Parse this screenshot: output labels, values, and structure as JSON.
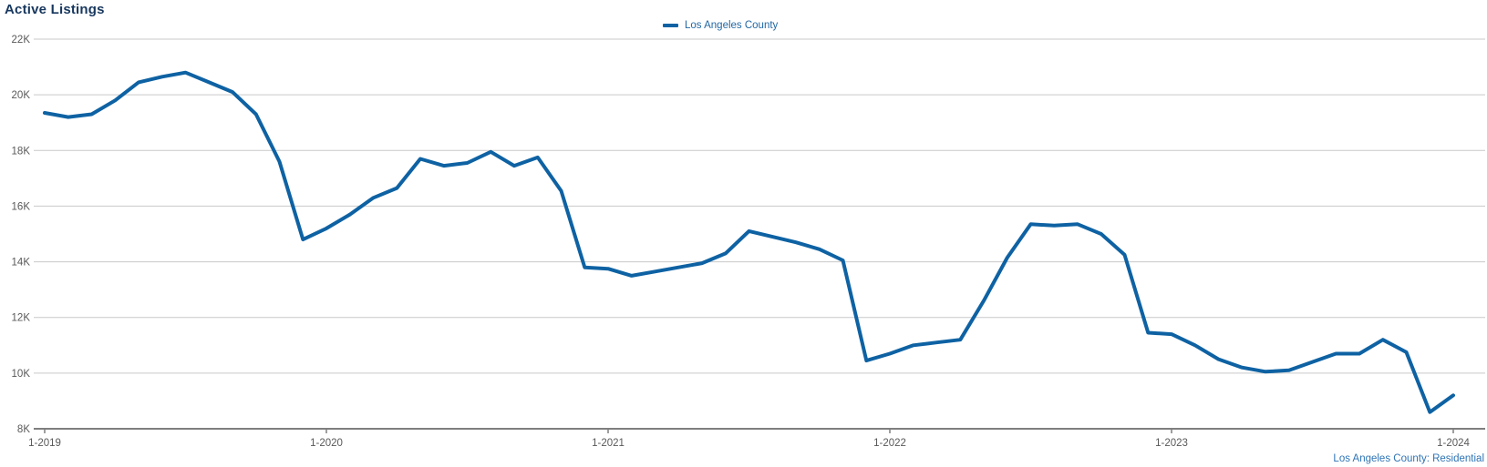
{
  "page": {
    "title": "Active Listings",
    "footer": "Los Angeles County: Residential"
  },
  "legend": {
    "items": [
      {
        "label": "Los Angeles County",
        "color": "#0e62a3"
      }
    ]
  },
  "colors": {
    "line": "#0e62a3",
    "title_text": "#17375e",
    "legend_text": "#2368a4",
    "footer_text": "#2e74b5",
    "axis_text": "#595959",
    "gridline": "#c9c9c9",
    "axis_line": "#7f7f7f"
  },
  "chart_data": {
    "type": "line",
    "title": "Active Listings",
    "subtitle": "",
    "xlabel": "",
    "ylabel": "",
    "legend_position": "top-center",
    "grid": "horizontal",
    "y_unit": "K",
    "ylim_k": [
      8,
      22
    ],
    "y_tick_step_k": 2,
    "y_tick_labels": [
      "8K",
      "10K",
      "12K",
      "14K",
      "16K",
      "18K",
      "20K",
      "22K"
    ],
    "x_tick_labels": [
      "1-2019",
      "1-2020",
      "1-2021",
      "1-2022",
      "1-2023",
      "1-2024"
    ],
    "x_tick_month_indices": [
      0,
      12,
      24,
      36,
      48,
      60
    ],
    "x": [
      "1-2019",
      "2-2019",
      "3-2019",
      "4-2019",
      "5-2019",
      "6-2019",
      "7-2019",
      "8-2019",
      "9-2019",
      "10-2019",
      "11-2019",
      "12-2019",
      "1-2020",
      "2-2020",
      "3-2020",
      "4-2020",
      "5-2020",
      "6-2020",
      "7-2020",
      "8-2020",
      "9-2020",
      "10-2020",
      "11-2020",
      "12-2020",
      "1-2021",
      "2-2021",
      "3-2021",
      "4-2021",
      "5-2021",
      "6-2021",
      "7-2021",
      "8-2021",
      "9-2021",
      "10-2021",
      "11-2021",
      "12-2021",
      "1-2022",
      "2-2022",
      "3-2022",
      "4-2022",
      "5-2022",
      "6-2022",
      "7-2022",
      "8-2022",
      "9-2022",
      "10-2022",
      "11-2022",
      "12-2022",
      "1-2023",
      "2-2023",
      "3-2023",
      "4-2023",
      "5-2023",
      "6-2023",
      "7-2023",
      "8-2023",
      "9-2023",
      "10-2023",
      "11-2023",
      "12-2023",
      "1-2024"
    ],
    "series": [
      {
        "name": "Los Angeles County",
        "values_k": [
          19.35,
          19.2,
          19.3,
          19.8,
          20.45,
          20.65,
          20.8,
          20.45,
          20.1,
          19.3,
          17.6,
          14.8,
          15.2,
          15.7,
          16.3,
          16.65,
          17.7,
          17.45,
          17.55,
          17.95,
          17.45,
          17.75,
          16.55,
          13.8,
          13.75,
          13.5,
          13.65,
          13.8,
          13.95,
          14.3,
          15.1,
          14.9,
          14.7,
          14.45,
          14.05,
          10.45,
          10.7,
          11.0,
          11.1,
          11.2,
          12.6,
          14.15,
          15.35,
          15.3,
          15.35,
          15.0,
          14.25,
          11.45,
          11.4,
          11.0,
          10.5,
          10.2,
          10.05,
          10.1,
          10.4,
          10.7,
          10.7,
          11.2,
          10.75,
          8.6,
          9.2
        ]
      }
    ]
  }
}
